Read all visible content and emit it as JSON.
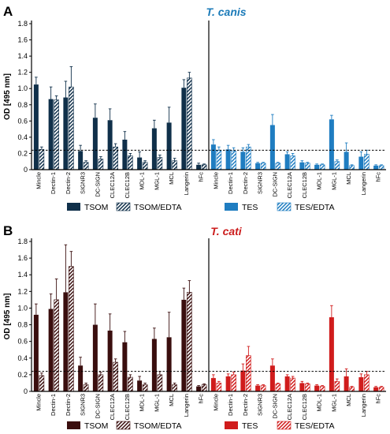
{
  "chart_data": [
    {
      "type": "bar",
      "panel": "A",
      "title": "T. canis",
      "title_color": "#1a7ab8",
      "ylabel": "OD [495 nm]",
      "ylim": [
        0,
        1.8
      ],
      "yticks": [
        0,
        0.2,
        0.4,
        0.6,
        0.8,
        1.0,
        1.2,
        1.4,
        1.6,
        1.8
      ],
      "threshold": 0.24,
      "categories": [
        "Mincle",
        "Dectin-1",
        "Dectin-2",
        "SIGNR3",
        "DC-SIGN",
        "CLEC12A",
        "CLEC12B",
        "MDL-1",
        "MGL-1",
        "MCL",
        "Langerin",
        "hFc"
      ],
      "groups": [
        {
          "series": [
            {
              "name": "TSOM",
              "color": "#10304a",
              "hatched": false,
              "values": [
                1.05,
                0.87,
                0.89,
                0.23,
                0.64,
                0.61,
                0.37,
                0.15,
                0.51,
                0.58,
                1.01,
                0.06
              ],
              "errors": [
                0.09,
                0.15,
                0.2,
                0.07,
                0.17,
                0.14,
                0.1,
                0.07,
                0.1,
                0.19,
                0.1,
                0.02
              ]
            },
            {
              "name": "TSOM/EDTA",
              "color": "#10304a",
              "hatched": true,
              "values": [
                0.25,
                0.86,
                1.02,
                0.09,
                0.13,
                0.28,
                0.17,
                0.09,
                0.15,
                0.11,
                1.13,
                0.06
              ],
              "errors": [
                0.03,
                0.05,
                0.25,
                0.02,
                0.03,
                0.04,
                0.03,
                0.02,
                0.03,
                0.03,
                0.07,
                0.01
              ]
            }
          ]
        },
        {
          "series": [
            {
              "name": "TES",
              "color": "#1f7dc1",
              "hatched": false,
              "values": [
                0.31,
                0.25,
                0.22,
                0.08,
                0.55,
                0.19,
                0.09,
                0.06,
                0.62,
                0.22,
                0.16,
                0.05
              ],
              "errors": [
                0.06,
                0.05,
                0.05,
                0.01,
                0.13,
                0.03,
                0.02,
                0.01,
                0.05,
                0.11,
                0.06,
                0.01
              ]
            },
            {
              "name": "TES/EDTA",
              "color": "#1f7dc1",
              "hatched": true,
              "values": [
                0.24,
                0.23,
                0.28,
                0.08,
                0.08,
                0.17,
                0.08,
                0.06,
                0.1,
                0.05,
                0.19,
                0.05
              ],
              "errors": [
                0.04,
                0.04,
                0.03,
                0.01,
                0.01,
                0.03,
                0.01,
                0.01,
                0.02,
                0.01,
                0.05,
                0.01
              ]
            }
          ]
        }
      ]
    },
    {
      "type": "bar",
      "panel": "B",
      "title": "T. cati",
      "title_color": "#cc1e1e",
      "ylabel": "OD [495 nm]",
      "ylim": [
        0,
        1.8
      ],
      "yticks": [
        0,
        0.2,
        0.4,
        0.6,
        0.8,
        1.0,
        1.2,
        1.4,
        1.6,
        1.8
      ],
      "threshold": 0.24,
      "categories": [
        "Mincle",
        "Dectin-1",
        "Dectin-2",
        "SIGNR3",
        "DC-SIGN",
        "CLEC12A",
        "CLEC12B",
        "MDL-1",
        "MGL-1",
        "MCL",
        "Langerin",
        "hFc"
      ],
      "groups": [
        {
          "series": [
            {
              "name": "TSOM",
              "color": "#3a0e0e",
              "hatched": false,
              "values": [
                0.92,
                0.99,
                1.19,
                0.31,
                0.8,
                0.73,
                0.59,
                0.13,
                0.63,
                0.65,
                1.1,
                0.06
              ],
              "errors": [
                0.13,
                0.18,
                0.57,
                0.1,
                0.25,
                0.2,
                0.13,
                0.05,
                0.13,
                0.3,
                0.14,
                0.01
              ]
            },
            {
              "name": "TSOM/EDTA",
              "color": "#3a0e0e",
              "hatched": true,
              "values": [
                0.19,
                1.1,
                1.5,
                0.08,
                0.2,
                0.35,
                0.17,
                0.08,
                0.2,
                0.08,
                1.19,
                0.08
              ],
              "errors": [
                0.03,
                0.25,
                0.18,
                0.02,
                0.03,
                0.04,
                0.03,
                0.02,
                0.04,
                0.02,
                0.14,
                0.01
              ]
            }
          ]
        },
        {
          "series": [
            {
              "name": "TES",
              "color": "#d01c1c",
              "hatched": false,
              "values": [
                0.16,
                0.18,
                0.25,
                0.07,
                0.31,
                0.18,
                0.1,
                0.07,
                0.89,
                0.18,
                0.17,
                0.05
              ],
              "errors": [
                0.04,
                0.03,
                0.08,
                0.01,
                0.08,
                0.02,
                0.02,
                0.01,
                0.14,
                0.09,
                0.04,
                0.01
              ]
            },
            {
              "name": "TES/EDTA",
              "color": "#d01c1c",
              "hatched": true,
              "values": [
                0.1,
                0.2,
                0.43,
                0.07,
                0.09,
                0.16,
                0.09,
                0.06,
                0.12,
                0.05,
                0.2,
                0.05
              ],
              "errors": [
                0.02,
                0.03,
                0.11,
                0.01,
                0.01,
                0.02,
                0.01,
                0.01,
                0.03,
                0.01,
                0.04,
                0.01
              ]
            }
          ]
        }
      ]
    }
  ]
}
